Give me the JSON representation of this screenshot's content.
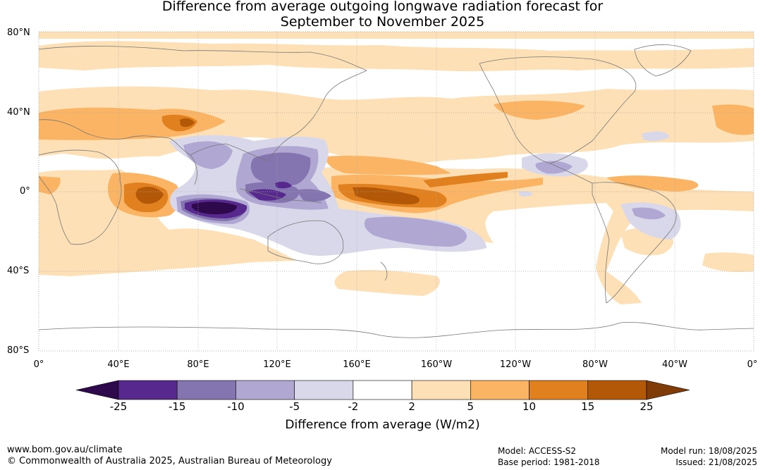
{
  "title": {
    "line1": "Difference from average outgoing longwave radiation forecast for",
    "line2": "September to November 2025"
  },
  "map": {
    "lat_labels": [
      "80°N",
      "40°N",
      "0°",
      "40°S",
      "80°S"
    ],
    "lon_labels": [
      "0°",
      "40°E",
      "80°E",
      "120°E",
      "160°E",
      "160°W",
      "120°W",
      "80°W",
      "40°W",
      "0°"
    ]
  },
  "colorbar": {
    "ticks": [
      "-25",
      "-15",
      "-10",
      "-5",
      "-2",
      "2",
      "5",
      "10",
      "15",
      "25"
    ],
    "colors": [
      "#2e0a4d",
      "#57288e",
      "#8474b0",
      "#b0a7d2",
      "#d8d8ea",
      "#ffffff",
      "#fde0b5",
      "#fbb463",
      "#e0801f",
      "#b35806",
      "#7f3b08"
    ],
    "label": "Difference from average (W/m2)"
  },
  "footer": {
    "url": "www.bom.gov.au/climate",
    "copyright": "© Commonwealth of Australia 2025, Australian Bureau of Meteorology",
    "model": "Model: ACCESS-S2",
    "base_period": "Base period: 1981-2018",
    "model_run": "Model run: 18/08/2025",
    "issued": "Issued: 21/08/2025"
  }
}
